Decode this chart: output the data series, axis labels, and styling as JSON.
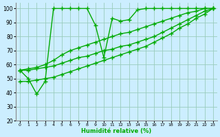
{
  "xlabel": "Humidité relative (%)",
  "bg_color": "#cceeff",
  "grid_color": "#99ccbb",
  "line_color": "#00aa00",
  "series": [
    {
      "x": [
        0,
        1,
        2,
        3,
        4,
        5,
        6,
        7,
        8,
        9,
        10,
        11,
        12,
        13,
        14,
        15,
        16,
        17,
        18,
        19,
        20,
        21,
        22,
        23
      ],
      "y": [
        56,
        50,
        39,
        48,
        100,
        100,
        100,
        100,
        100,
        88,
        65,
        93,
        91,
        92,
        99,
        100,
        100,
        100,
        100,
        100,
        100,
        100,
        100,
        100
      ]
    },
    {
      "x": [
        0,
        1,
        2,
        3,
        4,
        5,
        6,
        7,
        8,
        9,
        10,
        11,
        12,
        13,
        14,
        15,
        16,
        17,
        18,
        19,
        20,
        21,
        22,
        23
      ],
      "y": [
        56,
        57,
        58,
        60,
        63,
        67,
        70,
        72,
        74,
        76,
        78,
        80,
        82,
        83,
        85,
        87,
        89,
        91,
        93,
        95,
        97,
        98,
        100,
        100
      ]
    },
    {
      "x": [
        0,
        1,
        2,
        3,
        4,
        5,
        6,
        7,
        8,
        9,
        10,
        11,
        12,
        13,
        14,
        15,
        16,
        17,
        18,
        19,
        20,
        21,
        22,
        23
      ],
      "y": [
        56,
        56,
        57,
        58,
        59,
        61,
        63,
        65,
        66,
        68,
        70,
        71,
        73,
        74,
        76,
        78,
        80,
        83,
        86,
        89,
        92,
        95,
        98,
        100
      ]
    },
    {
      "x": [
        0,
        1,
        2,
        3,
        4,
        5,
        6,
        7,
        8,
        9,
        10,
        11,
        12,
        13,
        14,
        15,
        16,
        17,
        18,
        19,
        20,
        21,
        22,
        23
      ],
      "y": [
        48,
        48,
        49,
        50,
        51,
        53,
        55,
        57,
        59,
        61,
        63,
        65,
        67,
        69,
        71,
        73,
        76,
        79,
        82,
        86,
        89,
        93,
        96,
        100
      ]
    }
  ],
  "ylim": [
    20,
    104
  ],
  "xlim": [
    -0.5,
    23.5
  ],
  "yticks": [
    20,
    30,
    40,
    50,
    60,
    70,
    80,
    90,
    100
  ],
  "xticks": [
    0,
    1,
    2,
    3,
    4,
    5,
    6,
    7,
    8,
    9,
    10,
    11,
    12,
    13,
    14,
    15,
    16,
    17,
    18,
    19,
    20,
    21,
    22,
    23
  ],
  "marker": "+",
  "markersize": 4,
  "linewidth": 1.0,
  "markeredgewidth": 1.0
}
